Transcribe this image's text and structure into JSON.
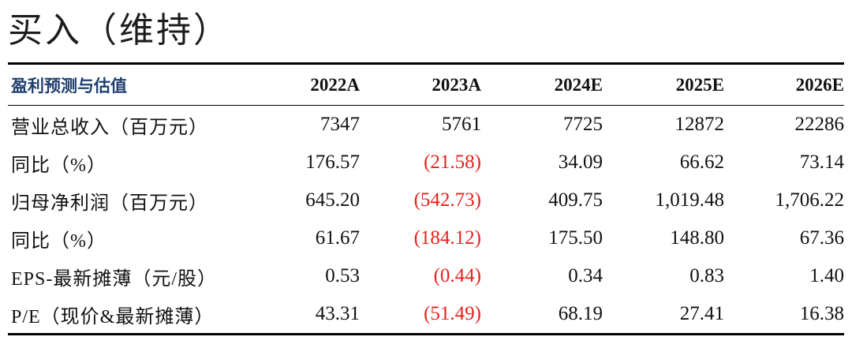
{
  "rating": "买入（维持）",
  "table": {
    "header_label": "盈利预测与估值",
    "columns": [
      "2022A",
      "2023A",
      "2024E",
      "2025E",
      "2026E"
    ],
    "rows": [
      {
        "label": "营业总收入（百万元）",
        "values": [
          "7347",
          "5761",
          "7725",
          "12872",
          "22286"
        ]
      },
      {
        "label": "同比（%）",
        "values": [
          "176.57",
          "(21.58)",
          "34.09",
          "66.62",
          "73.14"
        ]
      },
      {
        "label": "归母净利润（百万元）",
        "values": [
          "645.20",
          "(542.73)",
          "409.75",
          "1,019.48",
          "1,706.22"
        ]
      },
      {
        "label": "同比（%）",
        "values": [
          "61.67",
          "(184.12)",
          "175.50",
          "148.80",
          "67.36"
        ]
      },
      {
        "label": "EPS-最新摊薄（元/股）",
        "values": [
          "0.53",
          "(0.44)",
          "0.34",
          "0.83",
          "1.40"
        ]
      },
      {
        "label": "P/E（现价&最新摊薄）",
        "values": [
          "43.31",
          "(51.49)",
          "68.19",
          "27.41",
          "16.38"
        ]
      }
    ]
  },
  "colors": {
    "negative": "#e8201b",
    "header_label": "#1f3e6e"
  }
}
